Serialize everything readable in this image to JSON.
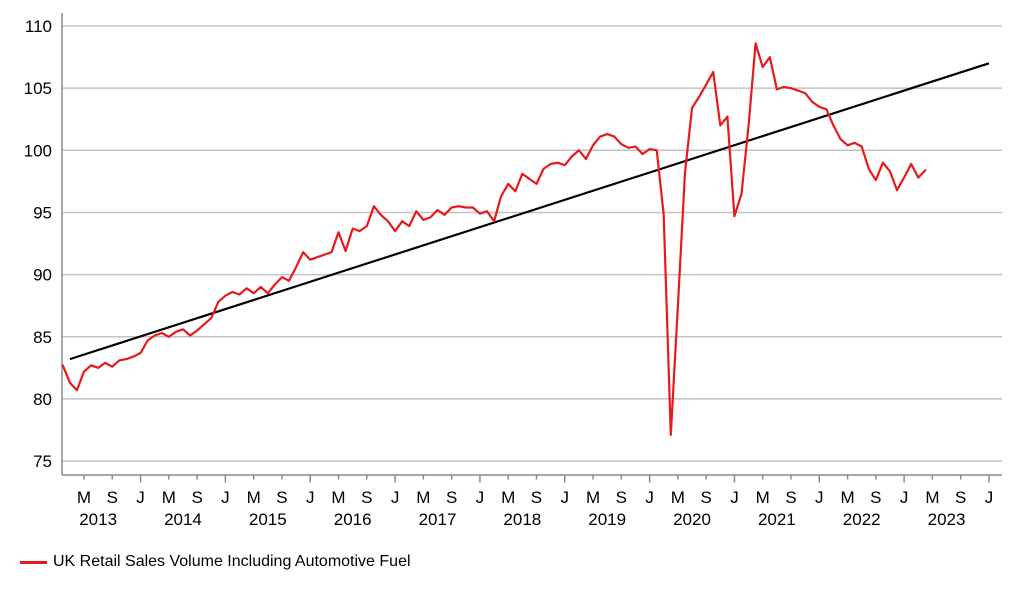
{
  "chart_data": {
    "type": "line",
    "title": "",
    "xlabel": "",
    "ylabel": "",
    "y_axis": {
      "min": 75,
      "max": 110,
      "tick_step": 5,
      "tick_labels": [
        "75",
        "80",
        "85",
        "90",
        "95",
        "100",
        "105",
        "110"
      ],
      "grid": true
    },
    "x_axis": {
      "month_letter_cycle": [
        "M",
        "S",
        "J"
      ],
      "month_letters_meaning": "May, September, January",
      "first_labeled_month": "May 2013",
      "last_labeled_month": "Jan 2024",
      "labeled_every_n_months": 4,
      "years": [
        "2013",
        "2014",
        "2015",
        "2016",
        "2017",
        "2018",
        "2019",
        "2020",
        "2021",
        "2022",
        "2023"
      ]
    },
    "series": [
      {
        "name": "UK Retail Sales Volume Including Automotive Fuel",
        "color": "#e61a1c",
        "start": {
          "year": 2013,
          "month": 2
        },
        "end": {
          "year": 2023,
          "month": 4
        },
        "values": [
          82.7,
          81.3,
          80.7,
          82.2,
          82.7,
          82.5,
          82.9,
          82.6,
          83.1,
          83.2,
          83.4,
          83.7,
          84.7,
          85.1,
          85.3,
          85.0,
          85.4,
          85.6,
          85.1,
          85.5,
          86.0,
          86.5,
          87.8,
          88.3,
          88.6,
          88.4,
          88.9,
          88.5,
          89.0,
          88.5,
          89.2,
          89.8,
          89.5,
          90.6,
          91.8,
          91.2,
          91.4,
          91.6,
          91.8,
          93.4,
          91.9,
          93.7,
          93.5,
          93.9,
          95.5,
          94.8,
          94.3,
          93.5,
          94.3,
          93.9,
          95.1,
          94.4,
          94.6,
          95.2,
          94.8,
          95.4,
          95.5,
          95.4,
          95.4,
          94.9,
          95.1,
          94.3,
          96.3,
          97.3,
          96.7,
          98.1,
          97.7,
          97.3,
          98.5,
          98.9,
          99.0,
          98.8,
          99.5,
          100.0,
          99.3,
          100.4,
          101.1,
          101.3,
          101.1,
          100.5,
          100.2,
          100.3,
          99.7,
          100.1,
          100.0,
          94.8,
          77.1,
          87.5,
          98.2,
          103.4,
          104.3,
          105.3,
          106.3,
          102.0,
          102.7,
          94.7,
          96.5,
          102.0,
          108.6,
          106.7,
          107.5,
          104.9,
          105.1,
          105.0,
          104.8,
          104.6,
          103.9,
          103.5,
          103.3,
          102.0,
          100.9,
          100.4,
          100.6,
          100.3,
          98.5,
          97.6,
          99.0,
          98.3,
          96.8,
          97.8,
          98.9,
          97.8,
          98.4
        ]
      },
      {
        "name": "linear trend line",
        "color": "#000000",
        "trend_line": {
          "start_month_index_from_feb2013": 1,
          "start_value": 83.2,
          "end_month_index_from_feb2013": 131,
          "end_value": 107.0
        }
      }
    ],
    "legend": {
      "label": "UK Retail Sales Volume Including Automotive Fuel",
      "color": "#e61a1c",
      "position": "bottom-left"
    },
    "colors": {
      "series_red": "#e61a1c",
      "trend_black": "#000000",
      "gridline_gray": "#c3c3c3",
      "axis_gray": "#8a8a8a",
      "text_black": "#000000",
      "background": "#ffffff"
    }
  }
}
